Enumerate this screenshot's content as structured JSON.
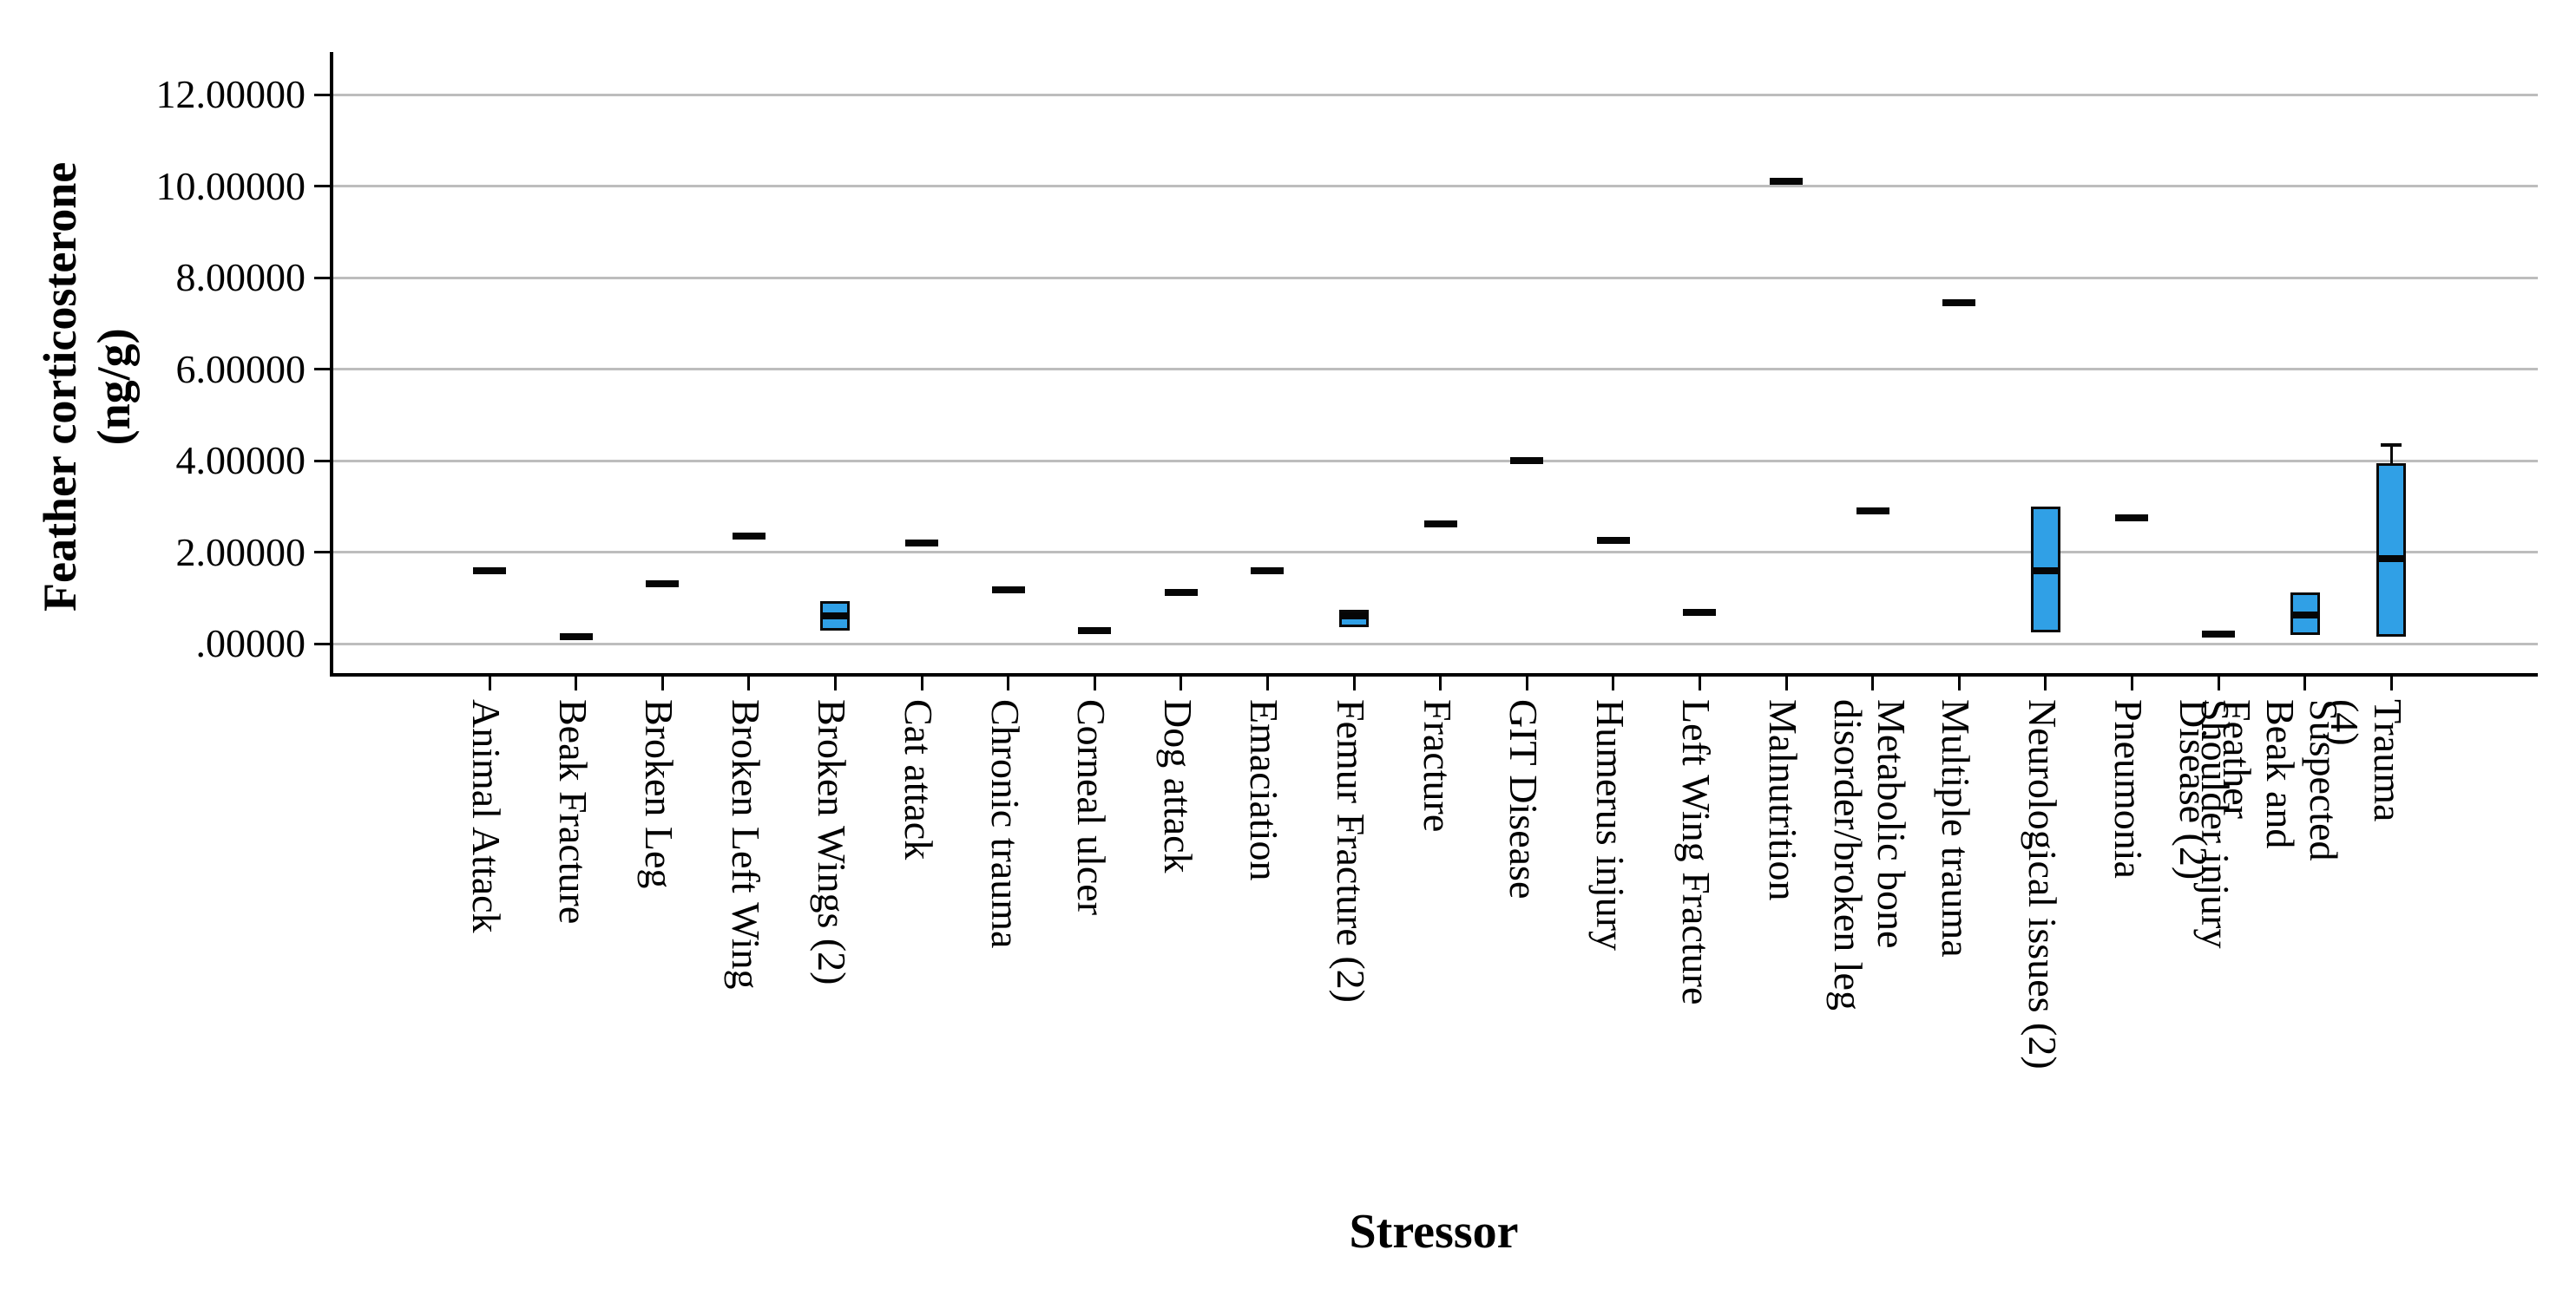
{
  "chart_data": {
    "type": "boxplot",
    "title": "",
    "xlabel": "Stressor",
    "ylabel": "Feather corticosterone\n(ng/g)",
    "ylim": [
      -0.7,
      12.8
    ],
    "grid": "horizontal",
    "ytick_values": [
      0,
      2,
      4,
      6,
      8,
      10,
      12
    ],
    "ytick_labels": [
      ".00000",
      "2.00000",
      "4.00000",
      "6.00000",
      "8.00000",
      "10.00000",
      "12.00000"
    ],
    "colors": {
      "box_fill": "#30a0e6",
      "box_border": "#0a0a0a",
      "gridline": "#bdbdbd",
      "axis": "#000000"
    },
    "categories": [
      {
        "label": "Animal Attack",
        "median": 1.6
      },
      {
        "label": "Beak Fracture",
        "median": 0.15
      },
      {
        "label": "Broken Leg",
        "median": 1.3
      },
      {
        "label": "Broken Left Wing",
        "median": 2.35
      },
      {
        "label": "Broken Wings (2)",
        "q1": 0.28,
        "median": 0.6,
        "q3": 0.93
      },
      {
        "label": "Cat attack",
        "median": 2.2
      },
      {
        "label": "Chronic trauma",
        "median": 1.18
      },
      {
        "label": "Corneal ulcer",
        "median": 0.28
      },
      {
        "label": "Dog attack",
        "median": 1.12
      },
      {
        "label": "Emaciation",
        "median": 1.6
      },
      {
        "label": "Femur Fracture (2)",
        "q1": 0.36,
        "median": 0.61,
        "q3": 0.74
      },
      {
        "label": "Fracture",
        "median": 2.62
      },
      {
        "label": "GIT Disease",
        "median": 4.0
      },
      {
        "label": "Humerus injury",
        "median": 2.25
      },
      {
        "label": "Left Wing Fracture",
        "median": 0.68
      },
      {
        "label": "Malnutrition",
        "median": 10.1
      },
      {
        "label": "Metabolic bone\ndisorder/broken leg",
        "median": 2.9
      },
      {
        "label": "Multiple trauma",
        "median": 7.45
      },
      {
        "label": "Neurological issues (2)",
        "q1": 0.25,
        "median": 1.6,
        "q3": 3.0
      },
      {
        "label": "Pneumonia",
        "median": 2.75
      },
      {
        "label": "Shoulder injury",
        "median": 0.2
      },
      {
        "label": "Suspected Beak and Feather\nDisease (2)",
        "q1": 0.18,
        "median": 0.63,
        "q3": 1.12
      },
      {
        "label": "Trauma (4)",
        "q1": 0.15,
        "median": 1.85,
        "q3": 3.95,
        "whisker_high": 4.35
      }
    ]
  }
}
